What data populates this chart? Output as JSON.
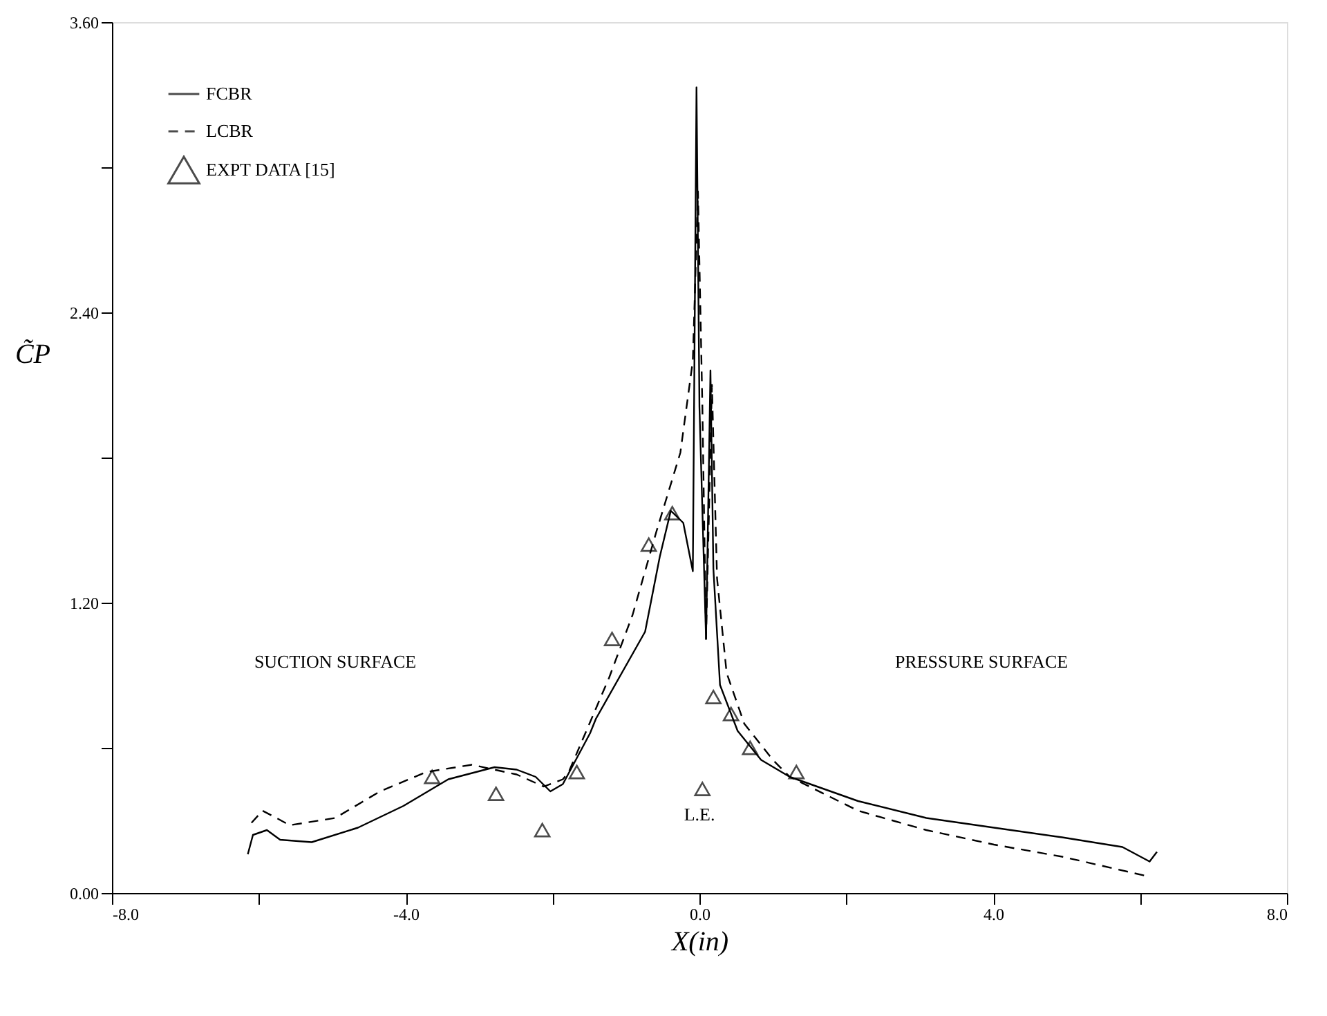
{
  "chart_data": {
    "type": "line",
    "xlabel": "X(in)",
    "ylabel": "C̃P",
    "xlim": [
      -8,
      8
    ],
    "ylim": [
      0,
      3.6
    ],
    "xticks": [
      {
        "value": -8,
        "label": "-8.0"
      },
      {
        "value": -6,
        "label": null
      },
      {
        "value": -4,
        "label": "-4.0"
      },
      {
        "value": -2,
        "label": null
      },
      {
        "value": 0,
        "label": "0.0"
      },
      {
        "value": 2,
        "label": null
      },
      {
        "value": 4,
        "label": "4.0"
      },
      {
        "value": 6,
        "label": null
      },
      {
        "value": 8,
        "label": "8.0"
      }
    ],
    "yticks": [
      {
        "value": 0,
        "label": "0.00"
      },
      {
        "value": 0.6,
        "label": null
      },
      {
        "value": 1.2,
        "label": "1.20"
      },
      {
        "value": 1.8,
        "label": null
      },
      {
        "value": 2.4,
        "label": "2.40"
      },
      {
        "value": 3.0,
        "label": null
      },
      {
        "value": 3.6,
        "label": "3.60"
      }
    ],
    "grid": false,
    "legend": "top left",
    "annotations": [
      "SUCTION SURFACE",
      "PRESSURE SURFACE",
      "L.E."
    ],
    "series": [
      {
        "name": "FCBR",
        "line_style": "solid",
        "color": "#000000",
        "x": [
          -6.15,
          -6.08,
          -5.89,
          -5.71,
          -5.28,
          -4.65,
          -4.03,
          -3.42,
          -2.79,
          -2.49,
          -2.23,
          -2.03,
          -1.86,
          -1.49,
          -1.41,
          -0.74,
          -0.54,
          -0.39,
          -0.22,
          -0.09,
          -0.04,
          0.0,
          0.09,
          0.15,
          0.19,
          0.28,
          0.52,
          0.84,
          1.23,
          2.16,
          3.09,
          4.01,
          4.94,
          5.76,
          6.13,
          6.23
        ],
        "values": [
          0.16,
          0.24,
          0.26,
          0.22,
          0.21,
          0.27,
          0.36,
          0.47,
          0.52,
          0.51,
          0.48,
          0.42,
          0.45,
          0.66,
          0.72,
          1.08,
          1.39,
          1.58,
          1.53,
          1.33,
          3.33,
          2.01,
          1.05,
          2.16,
          1.34,
          0.86,
          0.67,
          0.55,
          0.48,
          0.38,
          0.31,
          0.27,
          0.23,
          0.19,
          0.13,
          0.17
        ]
      },
      {
        "name": "LCBR",
        "line_style": "dashed",
        "color": "#000000",
        "x": [
          -6.1,
          -5.95,
          -5.76,
          -5.58,
          -4.96,
          -4.35,
          -3.72,
          -3.1,
          -2.49,
          -2.12,
          -1.86,
          -1.78,
          -1.23,
          -0.91,
          -0.59,
          -0.26,
          -0.09,
          -0.02,
          0.04,
          0.09,
          0.17,
          0.24,
          0.37,
          0.61,
          1.0,
          1.23,
          2.16,
          3.09,
          4.01,
          4.94,
          6.09
        ],
        "values": [
          0.29,
          0.34,
          0.31,
          0.28,
          0.31,
          0.42,
          0.5,
          0.53,
          0.49,
          0.44,
          0.47,
          0.5,
          0.89,
          1.15,
          1.49,
          1.82,
          2.2,
          2.9,
          2.01,
          1.05,
          2.1,
          1.3,
          0.91,
          0.7,
          0.55,
          0.48,
          0.34,
          0.26,
          0.2,
          0.15,
          0.07
        ]
      },
      {
        "name": "EXPT DATA [15]",
        "type": "scatter",
        "marker": "triangle",
        "color": "#000000",
        "x": [
          -3.64,
          -2.77,
          -2.14,
          -1.67,
          -1.19,
          -0.69,
          -0.37,
          0.04,
          0.19,
          0.43,
          0.69,
          1.32
        ],
        "values": [
          0.48,
          0.41,
          0.26,
          0.5,
          1.05,
          1.44,
          1.57,
          0.43,
          0.81,
          0.74,
          0.6,
          0.5
        ]
      }
    ]
  }
}
